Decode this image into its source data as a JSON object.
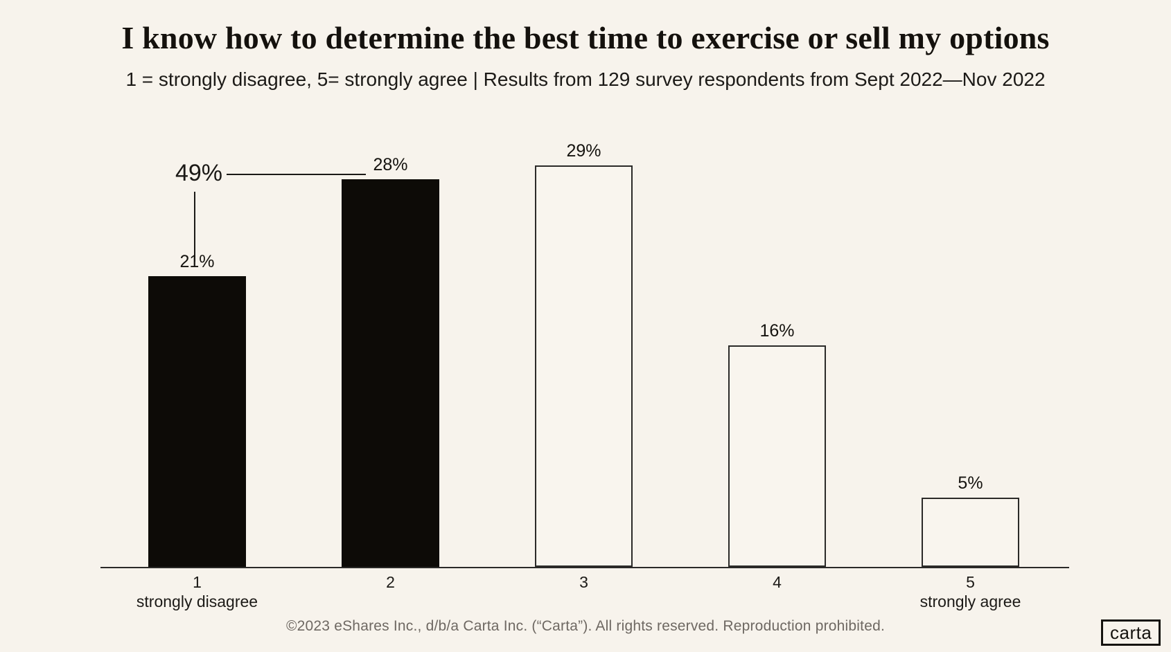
{
  "page": {
    "background": "#F7F3EC",
    "footer": "©2023 eShares Inc., d/b/a Carta Inc. (“Carta”). All rights reserved. Reproduction prohibited.",
    "logo_text": "carta"
  },
  "chart_data": {
    "type": "bar",
    "title": "I know how to determine the best time to exercise or sell my options",
    "subtitle": "1 = strongly disagree, 5= strongly agree | Results from 129 survey respondents from Sept 2022—Nov 2022",
    "categories": [
      "1",
      "2",
      "3",
      "4",
      "5"
    ],
    "category_sublabels": [
      "strongly disagree",
      "",
      "",
      "",
      "strongly agree"
    ],
    "values": [
      21,
      28,
      29,
      16,
      5
    ],
    "value_labels": [
      "21%",
      "28%",
      "29%",
      "16%",
      "5%"
    ],
    "bar_styles": [
      "filled",
      "filled",
      "outlined",
      "outlined",
      "outlined"
    ],
    "annotation": {
      "label": "49%",
      "spans_categories": [
        "1",
        "2"
      ]
    },
    "xlabel": "",
    "ylabel": "",
    "ylim": [
      0,
      30
    ],
    "grid": false,
    "legend": false,
    "colors": {
      "bar_fill": "#0d0b07",
      "bar_outline": "#2b2a28",
      "background": "#F7F3EC",
      "footer_text": "#6e6862"
    }
  }
}
